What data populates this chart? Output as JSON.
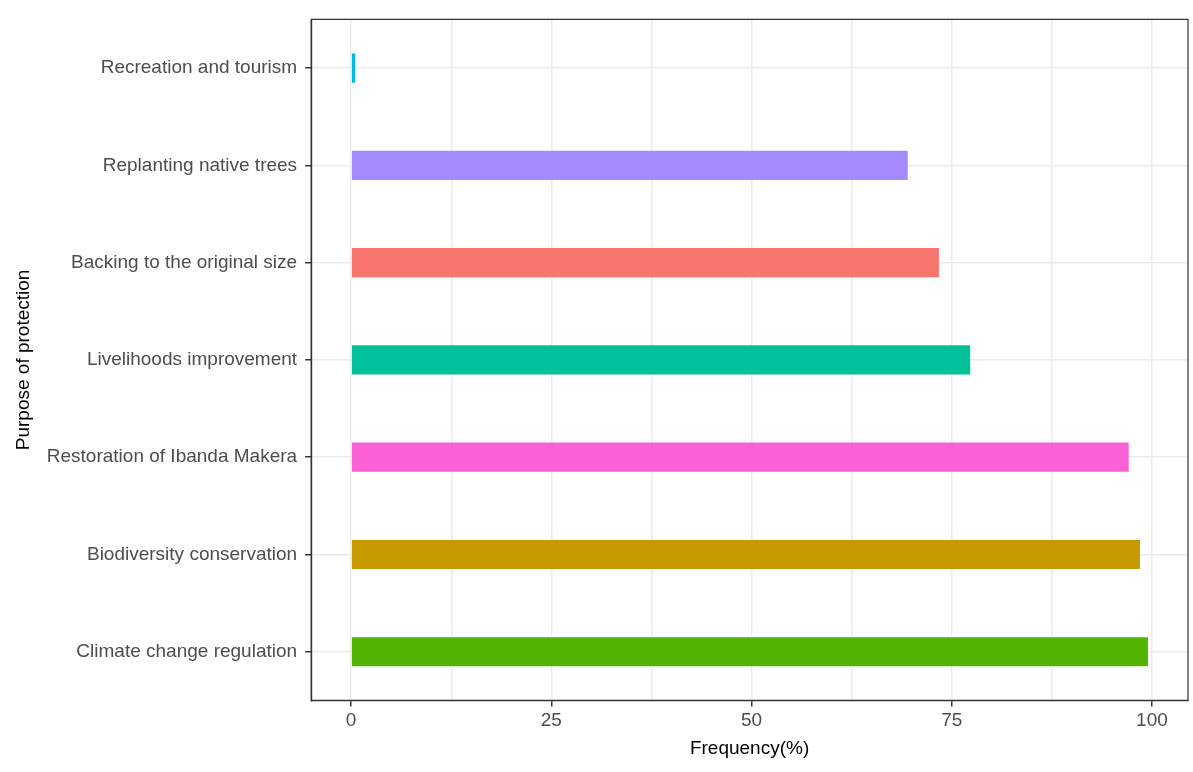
{
  "chart_data": {
    "type": "bar",
    "orientation": "horizontal",
    "xlabel": "Frequency(%)",
    "ylabel": "Purpose of protection",
    "categories": [
      "Recreation and tourism",
      "Replanting native trees",
      "Backing to the original size",
      "Livelihoods improvement",
      "Restoration of Ibanda Makera",
      "Biodiversity conservation",
      "Climate change regulation"
    ],
    "values": [
      0.5,
      69.5,
      73.4,
      77.3,
      97.1,
      98.5,
      99.5
    ],
    "colors": [
      "#00b9e3",
      "#a58aff",
      "#f8766d",
      "#00c19a",
      "#fb61d7",
      "#c49a00",
      "#53b400"
    ],
    "xlim": [
      -5,
      104.5
    ],
    "xticks": [
      0,
      {
        "value": 12.5,
        "label": null
      },
      25,
      {
        "value": 37.5,
        "label": null
      },
      50,
      {
        "value": 62.5,
        "label": null
      },
      75,
      {
        "value": 87.5,
        "label": null
      },
      100
    ],
    "grid": true,
    "legend": false
  }
}
